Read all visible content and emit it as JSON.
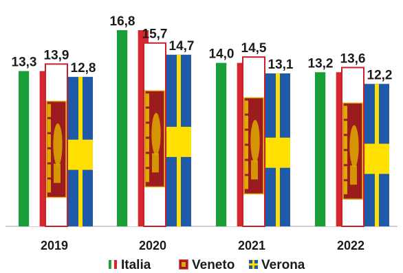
{
  "chart_data": {
    "type": "bar",
    "categories": [
      "2019",
      "2020",
      "2021",
      "2022"
    ],
    "series": [
      {
        "name": "Italia",
        "values": [
          13.3,
          16.8,
          14.0,
          13.2
        ],
        "labels": [
          "13,3",
          "16,8",
          "14,0",
          "13,2"
        ]
      },
      {
        "name": "Veneto",
        "values": [
          13.9,
          15.7,
          14.5,
          13.6
        ],
        "labels": [
          "13,9",
          "15,7",
          "14,5",
          "13,6"
        ]
      },
      {
        "name": "Verona",
        "values": [
          12.8,
          14.7,
          13.1,
          12.2
        ],
        "labels": [
          "12,8",
          "14,7",
          "13,1",
          "12,2"
        ]
      }
    ],
    "ylim": [
      0,
      16.8
    ],
    "grid": false,
    "legend": "bottom-center",
    "colors": {
      "italia_green": "#1a9e3a",
      "italia_white": "#ffffff",
      "italia_red": "#d6262e",
      "veneto_red": "#c8202a",
      "veneto_flag_red": "#9c1b1f",
      "veneto_flag_gold": "#e0a800",
      "verona_blue": "#1f5aa8",
      "verona_yellow": "#ffe000"
    }
  }
}
